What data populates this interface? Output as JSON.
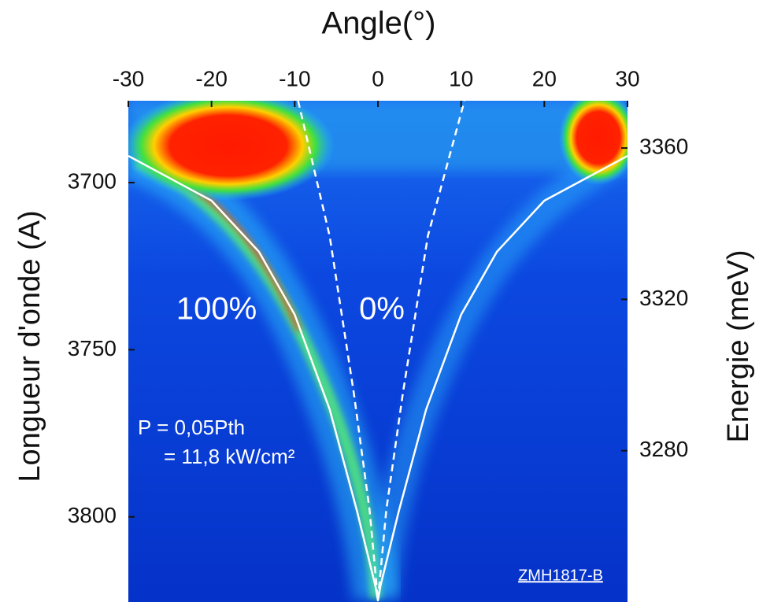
{
  "chart_data": {
    "type": "line",
    "x_label": "Angle(°)",
    "y_label": "Longueur d'onde (A)",
    "y2_label": "Energie (meV)",
    "xlim": [
      -30,
      30
    ],
    "xticks": [
      -30,
      -20,
      -10,
      0,
      10,
      20,
      30
    ],
    "ylim": [
      3675.5,
      3825.5
    ],
    "y_inverted": true,
    "yticks": [
      3700,
      3750,
      3800
    ],
    "y2lim": [
      3240,
      3372.5
    ],
    "y2ticks": [
      3280,
      3320,
      3360
    ],
    "series": [
      {
        "color": "#ffffff",
        "dashed": false,
        "x": [
          -30,
          -20,
          -14.3,
          -10,
          -5.8,
          -2.5,
          -0.3,
          0,
          0.3,
          2.5,
          5.8,
          10,
          14.3,
          20,
          30
        ],
        "values": [
          3692,
          3705.4,
          3720.7,
          3739.5,
          3767.8,
          3798.4,
          3820.7,
          3825,
          3820.7,
          3798.4,
          3767.8,
          3739.5,
          3720.7,
          3705.4,
          3692
        ]
      },
      {
        "color": "#ffffff",
        "dashed": true,
        "x": [
          -9.6,
          -5.8,
          -2.9,
          -1,
          0
        ],
        "values": [
          3675.5,
          3716,
          3763,
          3798,
          3825
        ]
      },
      {
        "color": "#ffffff",
        "dashed": true,
        "x": [
          0,
          1,
          3,
          6,
          10.4
        ],
        "values": [
          3825,
          3798,
          3763,
          3716,
          3675.5
        ]
      }
    ],
    "annotations": [
      "100%",
      "0%",
      "P = 0,05Pth",
      "= 11,8 kW/cm²",
      "ZMH1817-B"
    ]
  }
}
